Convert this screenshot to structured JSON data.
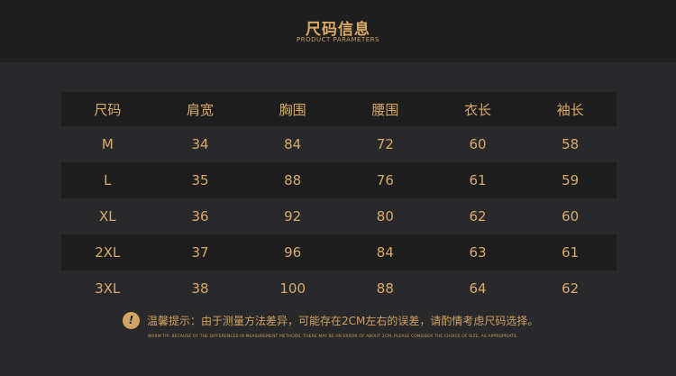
{
  "header": {
    "title": "尺码信息",
    "subtitle": "PRODUCT PARAMETERS"
  },
  "table": {
    "columns": [
      "尺码",
      "肩宽",
      "胸围",
      "腰围",
      "衣长",
      "袖长"
    ],
    "rows": [
      [
        "M",
        "34",
        "84",
        "72",
        "60",
        "58"
      ],
      [
        "L",
        "35",
        "88",
        "76",
        "61",
        "59"
      ],
      [
        "XL",
        "36",
        "92",
        "80",
        "62",
        "60"
      ],
      [
        "2XL",
        "37",
        "96",
        "84",
        "63",
        "61"
      ],
      [
        "3XL",
        "38",
        "100",
        "88",
        "64",
        "62"
      ]
    ]
  },
  "tip": {
    "icon": "exclamation-icon",
    "cn": "温馨提示：由于测量方法差异，可能存在2CM左右的误差，请酌情考虑尺码选择。",
    "en": "WARM TIP: BECAUSE OF THE DIFFERENCES IN MEASUREMENT METHODS, THERE MAY BE AN ERROR OF ABOUT 2CM, PLEASE CONSIDER THE CHOICE OF SIZE, AS APPROPRIATE."
  },
  "colors": {
    "gold": "#d8a866",
    "background": "#29292b",
    "banner": "#201f1f",
    "row_dark": "#1e1e1f"
  }
}
